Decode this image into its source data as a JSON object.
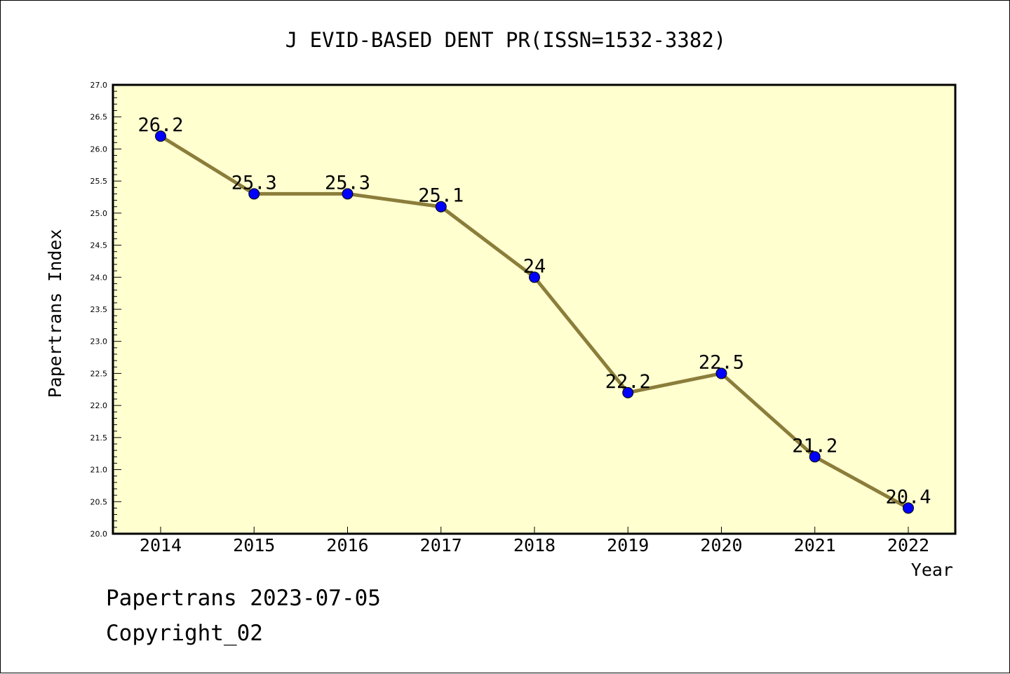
{
  "chart_data": {
    "type": "line",
    "title": "J EVID-BASED DENT PR(ISSN=1532-3382)",
    "xlabel": "Year",
    "ylabel": "Papertrans Index",
    "x": [
      "2014",
      "2015",
      "2016",
      "2017",
      "2018",
      "2019",
      "2020",
      "2021",
      "2022"
    ],
    "series": [
      {
        "values": [
          26.2,
          25.3,
          25.3,
          25.1,
          24,
          22.2,
          22.5,
          21.2,
          20.4
        ],
        "point_labels": [
          "26.2",
          "25.3",
          "25.3",
          "25.1",
          "24",
          "22.2",
          "22.5",
          "21.2",
          "20.4"
        ],
        "line_color": "#8b7d3a",
        "marker_color": "#0000ff"
      }
    ],
    "ylim": [
      20.0,
      27.0
    ],
    "yticks": [
      "20.0",
      "20.5",
      "21.0",
      "21.5",
      "22.0",
      "22.5",
      "23.0",
      "23.5",
      "24.0",
      "24.5",
      "25.0",
      "25.5",
      "26.0",
      "26.5",
      "27.0"
    ],
    "grid": false,
    "plot_background": "#ffffd0"
  },
  "footer": {
    "date_line": "Papertrans 2023-07-05",
    "copyright": "Copyright_02"
  }
}
